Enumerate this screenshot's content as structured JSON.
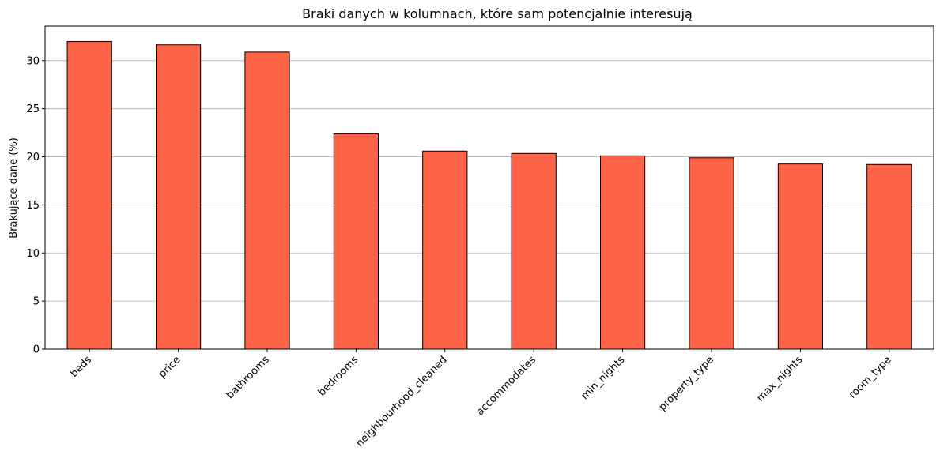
{
  "chart_data": {
    "type": "bar",
    "title": "Braki danych w kolumnach, które sam potencjalnie interesują",
    "xlabel": "",
    "ylabel": "Brakujące dane (%)",
    "categories": [
      "beds",
      "price",
      "bathrooms",
      "bedrooms",
      "neighbourhood_cleaned",
      "accommodates",
      "min_nights",
      "property_type",
      "max_nights",
      "room_type"
    ],
    "values": [
      32.0,
      31.65,
      30.9,
      22.4,
      20.6,
      20.35,
      20.1,
      19.9,
      19.25,
      19.2
    ],
    "ylim": [
      0,
      33.6
    ],
    "yticks": [
      0,
      5,
      10,
      15,
      20,
      25,
      30
    ],
    "grid": "y",
    "bar_color": "#ff6347",
    "edge_color": "#000000"
  }
}
